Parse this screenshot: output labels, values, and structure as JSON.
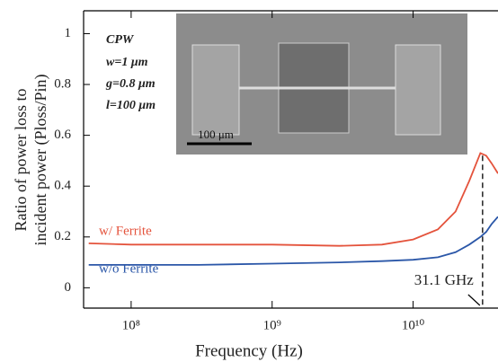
{
  "chart_data": {
    "type": "line",
    "y_label": [
      "Ratio of power loss to",
      "incident power (Ploss/Pin)"
    ],
    "x_label": "Frequency (Hz)",
    "x": [
      50000000,
      100000000,
      300000000,
      1000000000,
      3000000000,
      6000000000,
      10000000000,
      15000000000,
      20000000000,
      25000000000,
      30000000000,
      33000000000,
      36000000000,
      40000000000
    ],
    "series": [
      {
        "name": "w/ Ferrite",
        "color": "#e4533c",
        "values": [
          0.175,
          0.17,
          0.17,
          0.17,
          0.165,
          0.17,
          0.19,
          0.23,
          0.3,
          0.42,
          0.53,
          0.52,
          0.49,
          0.45
        ]
      },
      {
        "name": "w/o Ferrite",
        "color": "#2b57a8",
        "values": [
          0.09,
          0.09,
          0.09,
          0.095,
          0.1,
          0.105,
          0.11,
          0.12,
          0.14,
          0.17,
          0.2,
          0.22,
          0.25,
          0.28
        ]
      }
    ],
    "xlim": [
      46000000,
      40000000000
    ],
    "log_x": true,
    "xticks": [
      {
        "value": 100000000,
        "label": "10⁸"
      },
      {
        "value": 1000000000,
        "label": "10⁹"
      },
      {
        "value": 10000000000,
        "label": "10¹⁰"
      }
    ],
    "ylim": [
      -0.08,
      1.09
    ],
    "yticks": [
      0,
      0.2,
      0.4,
      0.6,
      0.8,
      1
    ],
    "marker_x": 31100000000,
    "marker_label": "31.1 GHz",
    "inset": {
      "lines": [
        "CPW",
        "w=1 μm",
        "g=0.8 μm",
        "l=100 μm"
      ],
      "scale_bar": "100 μm"
    }
  }
}
